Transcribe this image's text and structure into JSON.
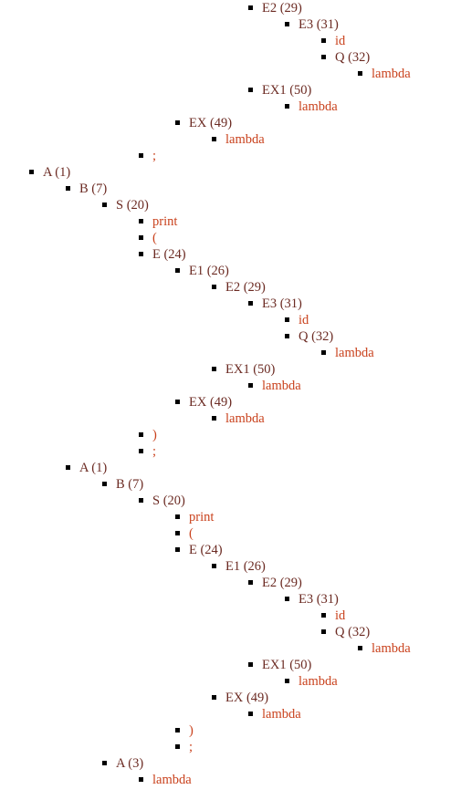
{
  "colors": {
    "nonterminal": "#6b2a22",
    "terminal": "#c9411c",
    "bullet": "#000000"
  },
  "tree": [
    {
      "label": "E2 (29)",
      "depth": 6,
      "kind": "nonterminal"
    },
    {
      "label": "E3 (31)",
      "depth": 7,
      "kind": "nonterminal"
    },
    {
      "label": "id",
      "depth": 8,
      "kind": "terminal"
    },
    {
      "label": "Q (32)",
      "depth": 8,
      "kind": "nonterminal"
    },
    {
      "label": "lambda",
      "depth": 9,
      "kind": "terminal"
    },
    {
      "label": "EX1 (50)",
      "depth": 6,
      "kind": "nonterminal"
    },
    {
      "label": "lambda",
      "depth": 7,
      "kind": "terminal"
    },
    {
      "label": "EX (49)",
      "depth": 4,
      "kind": "nonterminal"
    },
    {
      "label": "lambda",
      "depth": 5,
      "kind": "terminal"
    },
    {
      "label": ";",
      "depth": 3,
      "kind": "terminal"
    },
    {
      "label": "A (1)",
      "depth": 0,
      "kind": "nonterminal"
    },
    {
      "label": "B (7)",
      "depth": 1,
      "kind": "nonterminal"
    },
    {
      "label": "S (20)",
      "depth": 2,
      "kind": "nonterminal"
    },
    {
      "label": "print",
      "depth": 3,
      "kind": "terminal"
    },
    {
      "label": "(",
      "depth": 3,
      "kind": "terminal"
    },
    {
      "label": "E (24)",
      "depth": 3,
      "kind": "nonterminal"
    },
    {
      "label": "E1 (26)",
      "depth": 4,
      "kind": "nonterminal"
    },
    {
      "label": "E2 (29)",
      "depth": 5,
      "kind": "nonterminal"
    },
    {
      "label": "E3 (31)",
      "depth": 6,
      "kind": "nonterminal"
    },
    {
      "label": "id",
      "depth": 7,
      "kind": "terminal"
    },
    {
      "label": "Q (32)",
      "depth": 7,
      "kind": "nonterminal"
    },
    {
      "label": "lambda",
      "depth": 8,
      "kind": "terminal"
    },
    {
      "label": "EX1 (50)",
      "depth": 5,
      "kind": "nonterminal"
    },
    {
      "label": "lambda",
      "depth": 6,
      "kind": "terminal"
    },
    {
      "label": "EX (49)",
      "depth": 4,
      "kind": "nonterminal"
    },
    {
      "label": "lambda",
      "depth": 5,
      "kind": "terminal"
    },
    {
      "label": ")",
      "depth": 3,
      "kind": "terminal"
    },
    {
      "label": ";",
      "depth": 3,
      "kind": "terminal"
    },
    {
      "label": "A (1)",
      "depth": 1,
      "kind": "nonterminal"
    },
    {
      "label": "B (7)",
      "depth": 2,
      "kind": "nonterminal"
    },
    {
      "label": "S (20)",
      "depth": 3,
      "kind": "nonterminal"
    },
    {
      "label": "print",
      "depth": 4,
      "kind": "terminal"
    },
    {
      "label": "(",
      "depth": 4,
      "kind": "terminal"
    },
    {
      "label": "E (24)",
      "depth": 4,
      "kind": "nonterminal"
    },
    {
      "label": "E1 (26)",
      "depth": 5,
      "kind": "nonterminal"
    },
    {
      "label": "E2 (29)",
      "depth": 6,
      "kind": "nonterminal"
    },
    {
      "label": "E3 (31)",
      "depth": 7,
      "kind": "nonterminal"
    },
    {
      "label": "id",
      "depth": 8,
      "kind": "terminal"
    },
    {
      "label": "Q (32)",
      "depth": 8,
      "kind": "nonterminal"
    },
    {
      "label": "lambda",
      "depth": 9,
      "kind": "terminal"
    },
    {
      "label": "EX1 (50)",
      "depth": 6,
      "kind": "nonterminal"
    },
    {
      "label": "lambda",
      "depth": 7,
      "kind": "terminal"
    },
    {
      "label": "EX (49)",
      "depth": 5,
      "kind": "nonterminal"
    },
    {
      "label": "lambda",
      "depth": 6,
      "kind": "terminal"
    },
    {
      "label": ")",
      "depth": 4,
      "kind": "terminal"
    },
    {
      "label": ";",
      "depth": 4,
      "kind": "terminal"
    },
    {
      "label": "A (3)",
      "depth": 2,
      "kind": "nonterminal"
    },
    {
      "label": "lambda",
      "depth": 3,
      "kind": "terminal"
    }
  ]
}
